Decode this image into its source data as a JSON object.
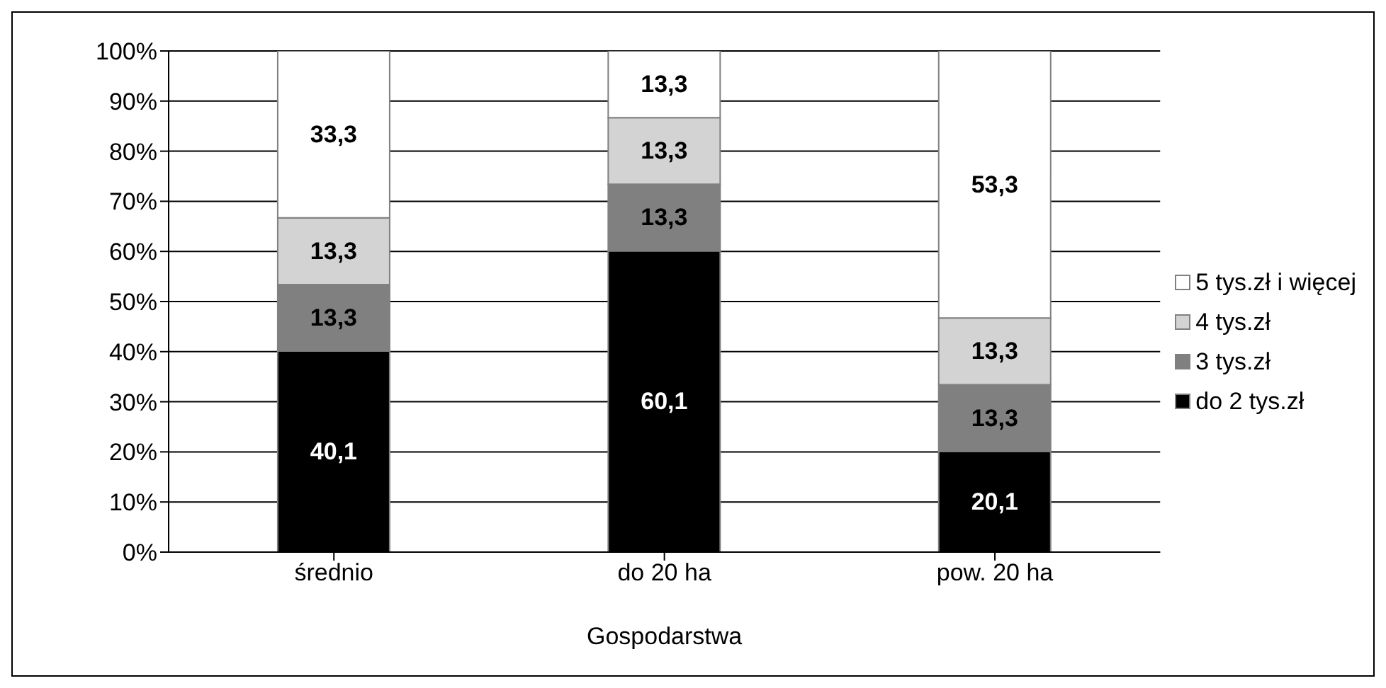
{
  "chart_data": {
    "type": "bar",
    "stacked": true,
    "xlabel": "Gospodarstwa",
    "categories": [
      "średnio",
      "do 20 ha",
      "pow. 20 ha"
    ],
    "series": [
      {
        "name": "do 2 tys.zł",
        "color": "#000000",
        "values": [
          40.1,
          60.1,
          20.1
        ],
        "value_labels": [
          "40,1",
          "60,1",
          "20,1"
        ]
      },
      {
        "name": "3 tys.zł",
        "color": "#808080",
        "values": [
          13.3,
          13.3,
          13.3
        ],
        "value_labels": [
          "13,3",
          "13,3",
          "13,3"
        ]
      },
      {
        "name": "4 tys.zł",
        "color": "#d3d3d3",
        "values": [
          13.3,
          13.3,
          13.3
        ],
        "value_labels": [
          "13,3",
          "13,3",
          "13,3"
        ]
      },
      {
        "name": "5 tys.zł i więcej",
        "color": "#ffffff",
        "values": [
          33.3,
          13.3,
          53.3
        ],
        "value_labels": [
          "33,3",
          "13,3",
          "53,3"
        ]
      }
    ],
    "ylim": [
      0,
      100
    ],
    "yticks": [
      {
        "value": 0,
        "label": "0%"
      },
      {
        "value": 10,
        "label": "10%"
      },
      {
        "value": 20,
        "label": "20%"
      },
      {
        "value": 30,
        "label": "30%"
      },
      {
        "value": 40,
        "label": "40%"
      },
      {
        "value": 50,
        "label": "50%"
      },
      {
        "value": 60,
        "label": "60%"
      },
      {
        "value": 70,
        "label": "70%"
      },
      {
        "value": 80,
        "label": "80%"
      },
      {
        "value": 90,
        "label": "90%"
      },
      {
        "value": 100,
        "label": "100%"
      }
    ],
    "grid": "y",
    "legend": "right"
  }
}
